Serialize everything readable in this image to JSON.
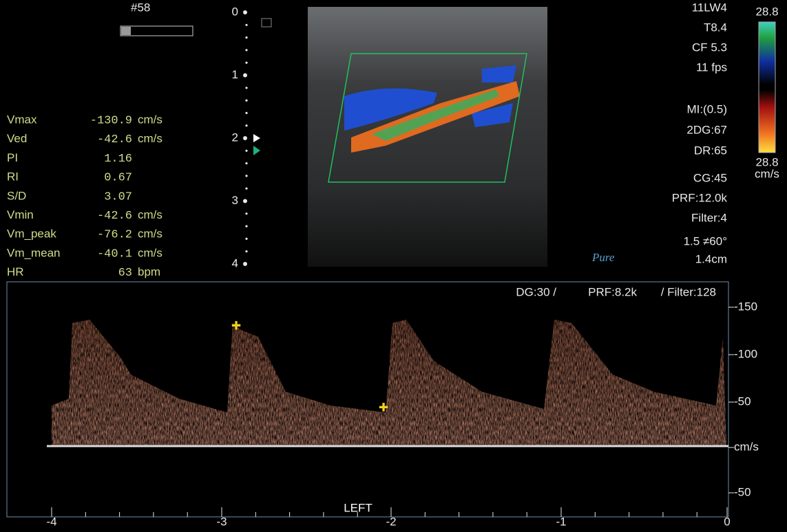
{
  "header": {
    "frame": "#58"
  },
  "depth_scale": [
    "0",
    "1",
    "2",
    "3",
    "4"
  ],
  "probe_settings": [
    "11LW4",
    "T8.4",
    "CF 5.3",
    "11 fps",
    "MI:(0.5)",
    "2DG:67",
    "DR:65",
    "CG:45",
    "PRF:12.0k",
    "Filter:4",
    "1.5 ≠60°",
    "1.4cm"
  ],
  "color_bar": {
    "top": "28.8",
    "bottom": "28.8",
    "unit": "cm/s"
  },
  "measurements": [
    {
      "name": "Vmax",
      "value": "-130.9",
      "unit": "cm/s"
    },
    {
      "name": "Ved",
      "value": "-42.6",
      "unit": "cm/s"
    },
    {
      "name": "PI",
      "value": "1.16"
    },
    {
      "name": "RI",
      "value": "0.67"
    },
    {
      "name": "S/D",
      "value": "3.07"
    },
    {
      "name": "Vmin",
      "value": "-42.6",
      "unit": "cm/s"
    },
    {
      "name": "Vm_peak",
      "value": "-76.2",
      "unit": "cm/s"
    },
    {
      "name": "Vm_mean",
      "value": "-40.1",
      "unit": "cm/s"
    },
    {
      "name": "HR",
      "value": "63",
      "unit": "bpm"
    }
  ],
  "logo": "Pure",
  "doppler": {
    "settings": [
      "DG:30 /",
      "PRF:8.2k",
      "/ Filter:128"
    ],
    "velocity_labels": [
      "-150",
      "-100",
      "-50",
      "cm/s",
      "-50"
    ],
    "time_labels": [
      "-4",
      "-3",
      "-2",
      "-1",
      "0"
    ],
    "side": "LEFT"
  }
}
